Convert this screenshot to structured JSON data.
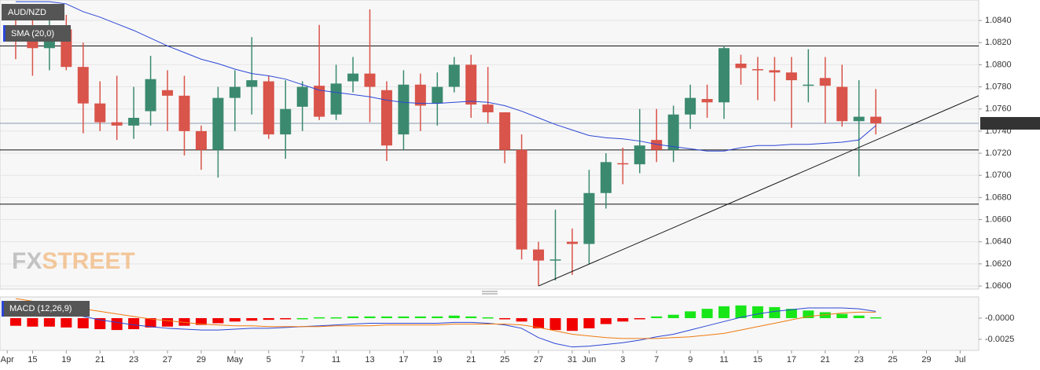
{
  "chart_data": [
    {
      "type": "candlestick",
      "title": "AUD/NZD",
      "watermark": [
        "FX",
        "STREET"
      ],
      "open": [
        1.0833,
        1.0828,
        1.0815,
        1.0832,
        1.0798,
        1.0765,
        1.0748,
        1.0745,
        1.0758,
        1.0777,
        1.0772,
        1.074,
        1.0723,
        1.077,
        1.078,
        1.0785,
        1.0737,
        1.0762,
        1.0781,
        1.0755,
        1.0785,
        1.0792,
        1.0777,
        1.0737,
        1.0782,
        1.0765,
        1.078,
        1.08,
        1.0764,
        1.0757,
        1.0723,
        1.0633,
        1.0623,
        1.064,
        1.0638,
        1.0684,
        1.0711,
        1.071,
        1.0732,
        1.0723,
        1.0755,
        1.0769,
        1.0766,
        1.0801,
        1.0796,
        1.0795,
        1.0793,
        1.0781,
        1.0788,
        1.078,
        1.0749,
        1.0753
      ],
      "high": [
        1.0845,
        1.0842,
        1.084,
        1.0845,
        1.082,
        1.0785,
        1.079,
        1.078,
        1.0808,
        1.0795,
        1.079,
        1.0745,
        1.078,
        1.0795,
        1.0825,
        1.079,
        1.0786,
        1.0785,
        1.0836,
        1.08,
        1.0807,
        1.085,
        1.0785,
        1.0795,
        1.0792,
        1.0793,
        1.0807,
        1.0809,
        1.0798,
        1.0757,
        1.0737,
        1.064,
        1.0669,
        1.0652,
        1.0705,
        1.072,
        1.0725,
        1.076,
        1.076,
        1.0763,
        1.0782,
        1.0782,
        1.0817,
        1.0809,
        1.0807,
        1.0807,
        1.0807,
        1.0814,
        1.0807,
        1.08,
        1.0786,
        1.0778
      ],
      "low": [
        1.0805,
        1.079,
        1.0795,
        1.0795,
        1.0738,
        1.074,
        1.0732,
        1.0733,
        1.0745,
        1.074,
        1.0718,
        1.0705,
        1.0698,
        1.074,
        1.0755,
        1.0733,
        1.0715,
        1.074,
        1.075,
        1.075,
        1.0775,
        1.0748,
        1.0713,
        1.0723,
        1.074,
        1.0745,
        1.0775,
        1.0752,
        1.0747,
        1.0711,
        1.0624,
        1.06,
        1.0605,
        1.061,
        1.062,
        1.067,
        1.0692,
        1.0702,
        1.0712,
        1.0712,
        1.0742,
        1.0752,
        1.0751,
        1.0782,
        1.0768,
        1.0767,
        1.0743,
        1.0766,
        1.0747,
        1.0744,
        1.0699,
        1.0737
      ],
      "close": [
        1.0822,
        1.0815,
        1.0832,
        1.0798,
        1.0765,
        1.0748,
        1.0745,
        1.0752,
        1.0787,
        1.0772,
        1.074,
        1.0723,
        1.077,
        1.078,
        1.0786,
        1.0737,
        1.076,
        1.078,
        1.0753,
        1.0783,
        1.0792,
        1.078,
        1.0727,
        1.0782,
        1.0763,
        1.078,
        1.08,
        1.0764,
        1.0757,
        1.0723,
        1.0633,
        1.0623,
        1.0624,
        1.0638,
        1.0684,
        1.0712,
        1.071,
        1.0727,
        1.0723,
        1.0755,
        1.077,
        1.0766,
        1.0815,
        1.0797,
        1.0795,
        1.0793,
        1.0786,
        1.0782,
        1.0781,
        1.0749,
        1.0753,
        1.0747
      ],
      "up_color": "#3b8a70",
      "down_color": "#d9544a",
      "overlays": [
        {
          "name": "SMA (20,0)",
          "color": "#2b47d6",
          "values": [
            1.0857,
            1.0857,
            1.0857,
            1.0855,
            1.0848,
            1.0843,
            1.0837,
            1.0831,
            1.0824,
            1.0817,
            1.0811,
            1.0805,
            1.0801,
            1.0796,
            1.0792,
            1.079,
            1.0787,
            1.0782,
            1.0777,
            1.0775,
            1.0773,
            1.0771,
            1.0768,
            1.0766,
            1.0765,
            1.0765,
            1.0766,
            1.0767,
            1.0766,
            1.0763,
            1.0758,
            1.0752,
            1.0746,
            1.0741,
            1.0736,
            1.0734,
            1.0733,
            1.0731,
            1.0728,
            1.0726,
            1.0724,
            1.0722,
            1.0722,
            1.0725,
            1.0727,
            1.0727,
            1.0728,
            1.0728,
            1.0729,
            1.073,
            1.0732,
            1.0745
          ]
        }
      ],
      "hlines": [
        1.0817,
        1.0723,
        1.0674
      ],
      "trendline": {
        "x": [
          31,
          57.1
        ],
        "y": [
          1.06,
          1.0772
        ]
      },
      "last_price": 1.074704,
      "xlim": [
        -0.93,
        57.1
      ],
      "ylim": [
        1.05972,
        1.08585
      ],
      "yticks": [
        {
          "value": 1.06,
          "label": "1.0600"
        },
        {
          "value": 1.062,
          "label": "1.0620"
        },
        {
          "value": 1.064,
          "label": "1.0640"
        },
        {
          "value": 1.066,
          "label": "1.0660"
        },
        {
          "value": 1.068,
          "label": "1.0680"
        },
        {
          "value": 1.07,
          "label": "1.0700"
        },
        {
          "value": 1.072,
          "label": "1.0720"
        },
        {
          "value": 1.074,
          "label": "1.0740"
        },
        {
          "value": 1.076,
          "label": "1.0760"
        },
        {
          "value": 1.078,
          "label": "1.0780"
        },
        {
          "value": 1.08,
          "label": "1.0800"
        },
        {
          "value": 1.082,
          "label": "1.0820"
        },
        {
          "value": 1.084,
          "label": "1.0840"
        }
      ],
      "grid": true
    },
    {
      "type": "macd",
      "title": "MACD (12,26,9)",
      "histogram": [
        -0.0009,
        -0.001,
        -0.001,
        -0.0011,
        -0.0012,
        -0.0013,
        -0.0014,
        -0.0013,
        -0.0011,
        -0.001,
        -0.0009,
        -0.0008,
        -0.0006,
        -0.0004,
        -0.0003,
        -0.0002,
        -0.0001,
        0.0,
        0.0001,
        0.0001,
        0.0002,
        0.0002,
        0.0002,
        0.0002,
        0.0002,
        0.0002,
        0.0003,
        0.0002,
        0.0001,
        -0.0001,
        -0.0004,
        -0.0012,
        -0.0014,
        -0.0015,
        -0.0012,
        -0.0007,
        -0.0004,
        -0.0001,
        0.0002,
        0.0004,
        0.0008,
        0.0011,
        0.0014,
        0.0015,
        0.0014,
        0.0013,
        0.0011,
        0.0009,
        0.0007,
        0.0005,
        0.0003,
        0.0001
      ],
      "up_color": "#19e619",
      "down_color": "#f00000",
      "lines": [
        {
          "color": "#2b47d6",
          "values": [
            0.0018,
            0.0014,
            0.001,
            0.0006,
            0.0002,
            -0.0002,
            -0.0005,
            -0.0008,
            -0.001,
            -0.0012,
            -0.0013,
            -0.0014,
            -0.0014,
            -0.0013,
            -0.0012,
            -0.0012,
            -0.0011,
            -0.001,
            -0.0009,
            -0.0008,
            -0.0007,
            -0.0006,
            -0.0006,
            -0.0006,
            -0.0006,
            -0.0006,
            -0.0005,
            -0.0005,
            -0.0006,
            -0.0008,
            -0.0012,
            -0.0023,
            -0.003,
            -0.0034,
            -0.0033,
            -0.0031,
            -0.0029,
            -0.0026,
            -0.0022,
            -0.0019,
            -0.0014,
            -0.0009,
            -0.0004,
            0.0001,
            0.0005,
            0.0008,
            0.001,
            0.0012,
            0.0012,
            0.0012,
            0.0011,
            0.0008
          ]
        },
        {
          "color": "#f07a10",
          "values": [
            0.0023,
            0.002,
            0.0017,
            0.0014,
            0.0011,
            0.0008,
            0.0005,
            0.0002,
            -0.0001,
            -0.0003,
            -0.0005,
            -0.0007,
            -0.0008,
            -0.0009,
            -0.0009,
            -0.001,
            -0.001,
            -0.001,
            -0.001,
            -0.0009,
            -0.0009,
            -0.0009,
            -0.0008,
            -0.0008,
            -0.0008,
            -0.0008,
            -0.0007,
            -0.0007,
            -0.0007,
            -0.0007,
            -0.0008,
            -0.0011,
            -0.0015,
            -0.0019,
            -0.0021,
            -0.0023,
            -0.0024,
            -0.0024,
            -0.0024,
            -0.0023,
            -0.0022,
            -0.002,
            -0.0018,
            -0.0014,
            -0.001,
            -0.0006,
            -0.0002,
            0.0002,
            0.0004,
            0.0006,
            0.0007,
            0.0007
          ]
        }
      ],
      "xlim": [
        -0.93,
        57.1
      ],
      "ylim": [
        -0.0038,
        0.0025
      ],
      "yticks": [
        {
          "value": 0,
          "label": "-0.0000"
        },
        {
          "value": -0.0025,
          "label": "-0.0025"
        }
      ],
      "xticks": [
        {
          "value": -0.5,
          "label": "Apr"
        },
        {
          "value": 1,
          "label": "15"
        },
        {
          "value": 3,
          "label": "19"
        },
        {
          "value": 5,
          "label": "21"
        },
        {
          "value": 7,
          "label": "23"
        },
        {
          "value": 9,
          "label": "27"
        },
        {
          "value": 11,
          "label": "29"
        },
        {
          "value": 13,
          "label": "May"
        },
        {
          "value": 15,
          "label": "5"
        },
        {
          "value": 17,
          "label": "7"
        },
        {
          "value": 19,
          "label": "11"
        },
        {
          "value": 21,
          "label": "13"
        },
        {
          "value": 23,
          "label": "17"
        },
        {
          "value": 25,
          "label": "19"
        },
        {
          "value": 27,
          "label": "21"
        },
        {
          "value": 29,
          "label": "25"
        },
        {
          "value": 31,
          "label": "27"
        },
        {
          "value": 33,
          "label": "31"
        },
        {
          "value": 34,
          "label": "Jun"
        },
        {
          "value": 36,
          "label": "3"
        },
        {
          "value": 38,
          "label": "7"
        },
        {
          "value": 40,
          "label": "9"
        },
        {
          "value": 42,
          "label": "11"
        },
        {
          "value": 44,
          "label": "15"
        },
        {
          "value": 46,
          "label": "17"
        },
        {
          "value": 48,
          "label": "21"
        },
        {
          "value": 50,
          "label": "23"
        },
        {
          "value": 52,
          "label": "25"
        },
        {
          "value": 54,
          "label": "29"
        },
        {
          "value": 56,
          "label": "Jul"
        }
      ]
    }
  ]
}
